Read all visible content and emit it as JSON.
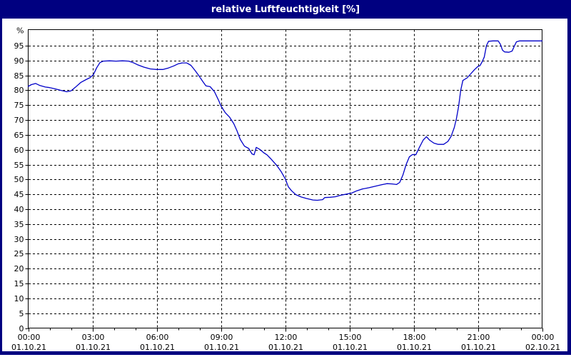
{
  "window": {
    "title": "relative Luftfeuchtigkeit [%]"
  },
  "colors": {
    "frame": "#000080",
    "title_text": "#ffffff",
    "background": "#ffffff",
    "plot_background": "#ffffff",
    "grid": "#000000",
    "axis": "#000000",
    "label_text": "#000000",
    "line": "#0000c8"
  },
  "chart_data": {
    "type": "line",
    "title": "relative Luftfeuchtigkeit [%]",
    "xlabel": "",
    "ylabel": "%",
    "grid": "dashed",
    "legend": "none",
    "ylim": [
      0,
      100
    ],
    "xlim_hours": [
      0,
      24
    ],
    "y_axis": {
      "unit_label": "%",
      "ticks": [
        0,
        5,
        10,
        15,
        20,
        25,
        30,
        35,
        40,
        45,
        50,
        55,
        60,
        65,
        70,
        75,
        80,
        85,
        90,
        95
      ]
    },
    "x_axis": {
      "minor_tick_every_hours": 1,
      "major_ticks": [
        {
          "hour": 0,
          "time": "00:00",
          "date": "01.10.21"
        },
        {
          "hour": 3,
          "time": "03:00",
          "date": "01.10.21"
        },
        {
          "hour": 6,
          "time": "06:00",
          "date": "01.10.21"
        },
        {
          "hour": 9,
          "time": "09:00",
          "date": "01.10.21"
        },
        {
          "hour": 12,
          "time": "12:00",
          "date": "01.10.21"
        },
        {
          "hour": 15,
          "time": "15:00",
          "date": "01.10.21"
        },
        {
          "hour": 18,
          "time": "18:00",
          "date": "01.10.21"
        },
        {
          "hour": 21,
          "time": "21:00",
          "date": "01.10.21"
        },
        {
          "hour": 24,
          "time": "00:00",
          "date": "02.10.21"
        }
      ]
    },
    "series": [
      {
        "name": "relative Luftfeuchtigkeit",
        "unit": "%",
        "color": "#0000c8",
        "points": [
          [
            0.0,
            81.3
          ],
          [
            0.15,
            81.9
          ],
          [
            0.35,
            82.3
          ],
          [
            0.55,
            81.6
          ],
          [
            0.8,
            81.1
          ],
          [
            1.0,
            80.9
          ],
          [
            1.25,
            80.5
          ],
          [
            1.5,
            80.0
          ],
          [
            1.8,
            79.5
          ],
          [
            2.0,
            79.8
          ],
          [
            2.2,
            81.0
          ],
          [
            2.45,
            82.6
          ],
          [
            2.7,
            83.6
          ],
          [
            2.9,
            84.3
          ],
          [
            3.05,
            85.3
          ],
          [
            3.2,
            87.6
          ],
          [
            3.35,
            89.3
          ],
          [
            3.5,
            89.8
          ],
          [
            3.8,
            89.9
          ],
          [
            4.1,
            89.8
          ],
          [
            4.4,
            89.9
          ],
          [
            4.7,
            89.8
          ],
          [
            4.9,
            89.3
          ],
          [
            5.1,
            88.6
          ],
          [
            5.4,
            87.8
          ],
          [
            5.7,
            87.2
          ],
          [
            6.0,
            87.0
          ],
          [
            6.3,
            87.0
          ],
          [
            6.55,
            87.5
          ],
          [
            6.8,
            88.2
          ],
          [
            7.0,
            88.9
          ],
          [
            7.2,
            89.2
          ],
          [
            7.4,
            89.2
          ],
          [
            7.6,
            88.4
          ],
          [
            7.8,
            86.6
          ],
          [
            8.0,
            84.6
          ],
          [
            8.15,
            83.0
          ],
          [
            8.3,
            81.5
          ],
          [
            8.5,
            81.2
          ],
          [
            8.7,
            79.5
          ],
          [
            8.9,
            76.5
          ],
          [
            9.0,
            74.8
          ],
          [
            9.2,
            72.5
          ],
          [
            9.4,
            71.0
          ],
          [
            9.6,
            68.8
          ],
          [
            9.75,
            66.4
          ],
          [
            9.9,
            63.5
          ],
          [
            10.1,
            61.2
          ],
          [
            10.3,
            60.4
          ],
          [
            10.45,
            58.6
          ],
          [
            10.55,
            58.3
          ],
          [
            10.65,
            60.8
          ],
          [
            10.8,
            60.2
          ],
          [
            11.0,
            59.0
          ],
          [
            11.15,
            58.3
          ],
          [
            11.35,
            56.8
          ],
          [
            11.6,
            54.8
          ],
          [
            11.8,
            52.8
          ],
          [
            12.0,
            50.3
          ],
          [
            12.15,
            47.5
          ],
          [
            12.3,
            46.2
          ],
          [
            12.5,
            44.9
          ],
          [
            12.75,
            44.1
          ],
          [
            13.0,
            43.6
          ],
          [
            13.3,
            43.1
          ],
          [
            13.5,
            43.0
          ],
          [
            13.75,
            43.2
          ],
          [
            13.85,
            43.9
          ],
          [
            14.1,
            44.0
          ],
          [
            14.35,
            44.2
          ],
          [
            14.6,
            44.7
          ],
          [
            14.9,
            45.1
          ],
          [
            15.1,
            45.4
          ],
          [
            15.35,
            46.2
          ],
          [
            15.6,
            46.8
          ],
          [
            15.9,
            47.2
          ],
          [
            16.2,
            47.7
          ],
          [
            16.5,
            48.2
          ],
          [
            16.75,
            48.6
          ],
          [
            17.0,
            48.5
          ],
          [
            17.2,
            48.3
          ],
          [
            17.35,
            49.0
          ],
          [
            17.5,
            51.5
          ],
          [
            17.65,
            55.0
          ],
          [
            17.8,
            57.6
          ],
          [
            17.95,
            58.4
          ],
          [
            18.1,
            58.3
          ],
          [
            18.25,
            60.5
          ],
          [
            18.45,
            63.3
          ],
          [
            18.6,
            64.4
          ],
          [
            18.75,
            63.2
          ],
          [
            18.95,
            62.2
          ],
          [
            19.15,
            61.8
          ],
          [
            19.4,
            61.8
          ],
          [
            19.6,
            62.8
          ],
          [
            19.75,
            64.5
          ],
          [
            19.9,
            67.5
          ],
          [
            20.0,
            70.5
          ],
          [
            20.1,
            74.5
          ],
          [
            20.2,
            80.0
          ],
          [
            20.3,
            83.3
          ],
          [
            20.5,
            84.2
          ],
          [
            20.65,
            85.4
          ],
          [
            20.85,
            87.0
          ],
          [
            21.0,
            88.0
          ],
          [
            21.1,
            88.3
          ],
          [
            21.2,
            89.6
          ],
          [
            21.3,
            91.2
          ],
          [
            21.4,
            95.0
          ],
          [
            21.5,
            96.5
          ],
          [
            21.7,
            96.6
          ],
          [
            21.95,
            96.6
          ],
          [
            22.05,
            95.5
          ],
          [
            22.15,
            93.5
          ],
          [
            22.25,
            92.9
          ],
          [
            22.45,
            92.8
          ],
          [
            22.6,
            93.2
          ],
          [
            22.7,
            94.8
          ],
          [
            22.8,
            96.3
          ],
          [
            22.95,
            96.6
          ],
          [
            23.2,
            96.6
          ],
          [
            23.5,
            96.6
          ],
          [
            23.75,
            96.6
          ],
          [
            24.0,
            96.6
          ]
        ]
      }
    ]
  }
}
